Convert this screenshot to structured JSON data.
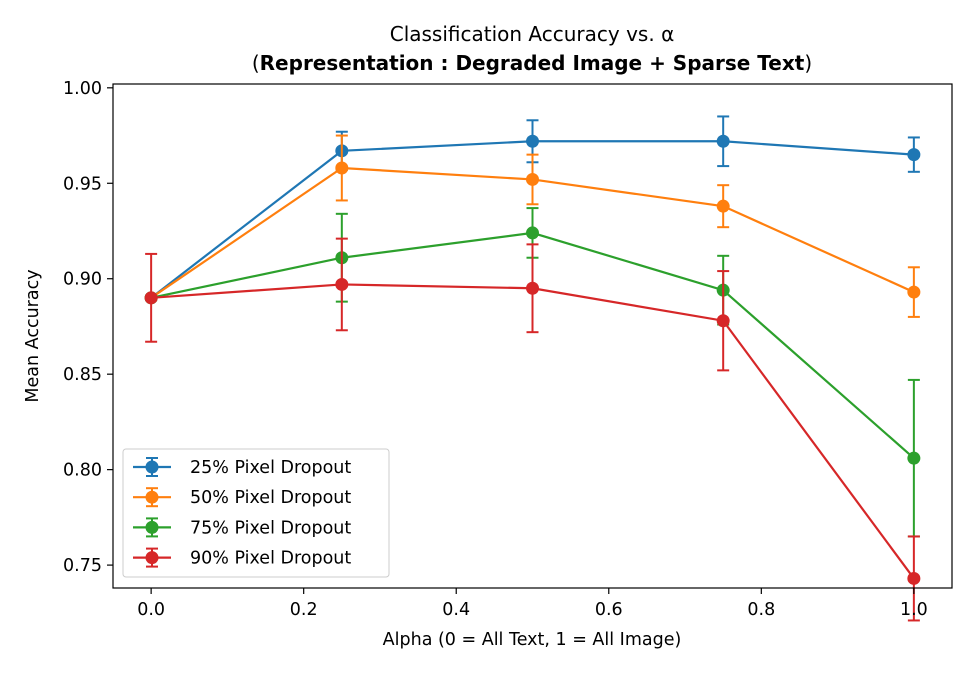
{
  "chart_data": {
    "type": "line",
    "title": "Classification Accuracy vs. α",
    "subtitle": {
      "open": "(",
      "bold": "Representation : Degraded Image + Sparse Text",
      "close": ")"
    },
    "xlabel": "Alpha (0 = All Text, 1 = All Image)",
    "ylabel": "Mean Accuracy",
    "xlim": [
      -0.05,
      1.05
    ],
    "ylim": [
      0.738,
      1.002
    ],
    "x_ticks": [
      0.0,
      0.2,
      0.4,
      0.6,
      0.8,
      1.0
    ],
    "x_tick_labels": [
      "0.0",
      "0.2",
      "0.4",
      "0.6",
      "0.8",
      "1.0"
    ],
    "y_ticks": [
      0.75,
      0.8,
      0.85,
      0.9,
      0.95,
      1.0
    ],
    "y_tick_labels": [
      "0.75",
      "0.80",
      "0.85",
      "0.90",
      "0.95",
      "1.00"
    ],
    "grid": false,
    "legend_position": "lower-left",
    "x": [
      0.0,
      0.25,
      0.5,
      0.75,
      1.0
    ],
    "series": [
      {
        "name": "25% Pixel Dropout",
        "color": "#1f77b4",
        "values": [
          0.89,
          0.967,
          0.972,
          0.972,
          0.965
        ],
        "errors": [
          0.0,
          0.01,
          0.011,
          0.013,
          0.009
        ]
      },
      {
        "name": "50% Pixel Dropout",
        "color": "#ff7f0e",
        "values": [
          0.89,
          0.958,
          0.952,
          0.938,
          0.893
        ],
        "errors": [
          0.0,
          0.017,
          0.013,
          0.011,
          0.013
        ]
      },
      {
        "name": "75% Pixel Dropout",
        "color": "#2ca02c",
        "values": [
          0.89,
          0.911,
          0.924,
          0.894,
          0.806
        ],
        "errors": [
          0.0,
          0.023,
          0.013,
          0.018,
          0.041
        ]
      },
      {
        "name": "90% Pixel Dropout",
        "color": "#d62728",
        "values": [
          0.89,
          0.897,
          0.895,
          0.878,
          0.743
        ],
        "errors": [
          0.023,
          0.024,
          0.023,
          0.026,
          0.022
        ]
      }
    ]
  }
}
